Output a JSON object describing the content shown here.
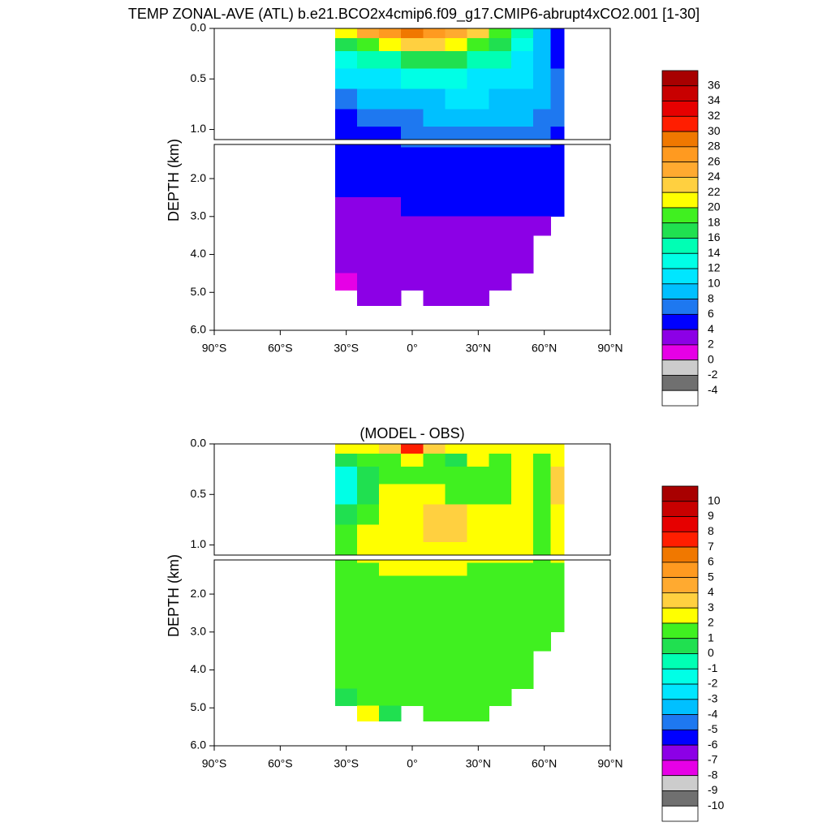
{
  "chart_data": [
    {
      "type": "contour",
      "title": "TEMP ZONAL-AVE (ATL) b.e21.BCO2x4cmip6.f09_g17.CMIP6-abrupt4xCO2.001 [1-30]",
      "y_label": "DEPTH (km)",
      "xlim": [
        -90,
        90
      ],
      "xticks": [
        {
          "value": -90,
          "label": "90°S"
        },
        {
          "value": -60,
          "label": "60°S"
        },
        {
          "value": -30,
          "label": "30°S"
        },
        {
          "value": 0,
          "label": "0°"
        },
        {
          "value": 30,
          "label": "30°N"
        },
        {
          "value": 60,
          "label": "60°N"
        },
        {
          "value": 90,
          "label": "90°N"
        }
      ],
      "axes": [
        {
          "ylim": [
            0,
            1.1
          ],
          "yticks": [
            {
              "value": 0,
              "label": "0.0"
            },
            0.5,
            {
              "value": 1,
              "label": "1.0"
            }
          ]
        },
        {
          "ylim": [
            1.1,
            6
          ],
          "yticks": [
            {
              "value": 2,
              "label": "2.0"
            },
            {
              "value": 3,
              "label": "3.0"
            },
            {
              "value": 4,
              "label": "4.0"
            },
            {
              "value": 5,
              "label": "5.0"
            },
            {
              "value": 6,
              "label": "6.0"
            }
          ]
        }
      ],
      "x": [
        -30,
        -20,
        -10,
        0,
        10,
        20,
        30,
        40,
        50,
        60,
        66
      ],
      "y": [
        0.05,
        0.15,
        0.3,
        0.5,
        0.7,
        0.9,
        1.05,
        1.3,
        1.75,
        2.25,
        2.75,
        3.25,
        3.75,
        4.25,
        4.75,
        5.15
      ],
      "z": [
        [
          22,
          25,
          27,
          29,
          27,
          25,
          23,
          20,
          15,
          10,
          5
        ],
        [
          18,
          20,
          22,
          24,
          23,
          22,
          20,
          17,
          13,
          10,
          6
        ],
        [
          14,
          15,
          16,
          17,
          17,
          17,
          16,
          15,
          12,
          9,
          6
        ],
        [
          12,
          12,
          12,
          13,
          13,
          13,
          12,
          12,
          11,
          9,
          7
        ],
        [
          8,
          9,
          9,
          10,
          10,
          11,
          11,
          10,
          10,
          9,
          7
        ],
        [
          6,
          7,
          8,
          8,
          9,
          9,
          10,
          10,
          9,
          8,
          7
        ],
        [
          5,
          5,
          6,
          7,
          7,
          8,
          8,
          8,
          8,
          7,
          6
        ],
        [
          5,
          5,
          6,
          6,
          6,
          6,
          6,
          6,
          6,
          6,
          5
        ],
        [
          4.5,
          5,
          5,
          5,
          5,
          5,
          5,
          5,
          5,
          5,
          5
        ],
        [
          4.2,
          4.5,
          4.5,
          4.5,
          4.5,
          4.5,
          4.5,
          4.5,
          4.5,
          4.5,
          4.5
        ],
        [
          3.5,
          3.8,
          3.9,
          4.2,
          4.1,
          4.1,
          4.2,
          4.2,
          4.2,
          4.2,
          4.2
        ],
        [
          3,
          3,
          3,
          3.2,
          3.5,
          3.2,
          3.2,
          3.2,
          3.5,
          3.8,
          null
        ],
        [
          3,
          3,
          3,
          3,
          3,
          3,
          3,
          3,
          3,
          null,
          null
        ],
        [
          3,
          3,
          3,
          3,
          3,
          3,
          3,
          3,
          3,
          null,
          null
        ],
        [
          1.8,
          3,
          3,
          3,
          3,
          3,
          3,
          3,
          null,
          null,
          null
        ],
        [
          null,
          3,
          3,
          null,
          3,
          3,
          3,
          null,
          null,
          null,
          null
        ]
      ],
      "colorbar_levels": [
        36,
        34,
        32,
        30,
        28,
        26,
        24,
        22,
        20,
        18,
        16,
        14,
        12,
        10,
        8,
        6,
        4,
        2,
        0,
        -2,
        -4
      ],
      "colors": [
        "#a80000",
        "#c80000",
        "#e60000",
        "#ff1e00",
        "#f07800",
        "#ff9a20",
        "#ffaa30",
        "#ffd040",
        "#ffff00",
        "#40f020",
        "#20e050",
        "#00ffb4",
        "#00ffe6",
        "#00e6ff",
        "#00c0ff",
        "#1e78f0",
        "#0000ff",
        "#8c00e6",
        "#e600e6",
        "#cccccc",
        "#707070",
        "#ffffff"
      ]
    },
    {
      "type": "contour",
      "title": "(MODEL - OBS)",
      "y_label": "DEPTH (km)",
      "xlim": [
        -90,
        90
      ],
      "xticks": [
        {
          "value": -90,
          "label": "90°S"
        },
        {
          "value": -60,
          "label": "60°S"
        },
        {
          "value": -30,
          "label": "30°S"
        },
        {
          "value": 0,
          "label": "0°"
        },
        {
          "value": 30,
          "label": "30°N"
        },
        {
          "value": 60,
          "label": "60°N"
        },
        {
          "value": 90,
          "label": "90°N"
        }
      ],
      "axes": [
        {
          "ylim": [
            0,
            1.1
          ],
          "yticks": [
            {
              "value": 0,
              "label": "0.0"
            },
            0.5,
            {
              "value": 1,
              "label": "1.0"
            }
          ]
        },
        {
          "ylim": [
            1.1,
            6
          ],
          "yticks": [
            {
              "value": 2,
              "label": "2.0"
            },
            {
              "value": 3,
              "label": "3.0"
            },
            {
              "value": 4,
              "label": "4.0"
            },
            {
              "value": 5,
              "label": "5.0"
            },
            {
              "value": 6,
              "label": "6.0"
            }
          ]
        }
      ],
      "x": [
        -30,
        -20,
        -10,
        0,
        10,
        20,
        30,
        40,
        50,
        60,
        66
      ],
      "y": [
        0.05,
        0.15,
        0.3,
        0.5,
        0.7,
        0.9,
        1.05,
        1.3,
        1.75,
        2.25,
        2.75,
        3.25,
        3.75,
        4.25,
        4.75,
        5.15
      ],
      "z": [
        [
          3,
          2.5,
          4,
          8,
          4,
          3,
          3,
          3,
          3,
          3,
          3
        ],
        [
          1,
          1.5,
          2,
          2.5,
          1.5,
          1,
          2.5,
          2,
          3,
          1.5,
          3
        ],
        [
          -1,
          0.5,
          1.5,
          1.5,
          1.5,
          1.5,
          2,
          1.5,
          3,
          1.5,
          4
        ],
        [
          -1.5,
          0.5,
          2.5,
          2.5,
          2.5,
          1.5,
          1.5,
          1.5,
          3,
          1.5,
          4
        ],
        [
          0.5,
          1.5,
          2.5,
          2.5,
          3.5,
          3.5,
          2.5,
          2.5,
          3,
          1.5,
          3
        ],
        [
          1.5,
          2.5,
          2.5,
          2.5,
          3.5,
          3.5,
          2.5,
          2.5,
          2.5,
          1.5,
          3
        ],
        [
          1.5,
          2.5,
          2.5,
          2.5,
          2.5,
          2.5,
          2.5,
          2.5,
          2.5,
          2,
          2.5
        ],
        [
          1.5,
          1.5,
          2.5,
          2.5,
          2.5,
          2.5,
          1.5,
          1.5,
          1.5,
          1.5,
          1.5
        ],
        [
          1.5,
          1.5,
          1.5,
          1.5,
          1.5,
          1.5,
          1.5,
          1.5,
          1.5,
          1.5,
          1.5
        ],
        [
          1.5,
          1.5,
          1.5,
          1.5,
          1.5,
          1.5,
          1.5,
          1.5,
          1.5,
          1.5,
          1.5
        ],
        [
          1.5,
          1.5,
          1.5,
          1.5,
          1.5,
          1.5,
          1.5,
          1.5,
          1.5,
          1.5,
          1.5
        ],
        [
          1.5,
          1.5,
          1.5,
          1.5,
          1.5,
          1.5,
          1.5,
          1.5,
          1.5,
          1.5,
          null
        ],
        [
          1.5,
          1.5,
          1.5,
          1.5,
          1.5,
          1.5,
          1.5,
          1.5,
          1.5,
          null,
          null
        ],
        [
          1.5,
          1.5,
          1.5,
          1.5,
          1.5,
          1.5,
          1.5,
          1.5,
          1.5,
          null,
          null
        ],
        [
          0.5,
          1.5,
          1.5,
          1.5,
          1.5,
          1.5,
          1.5,
          1.5,
          null,
          null,
          null
        ],
        [
          null,
          2.5,
          0.5,
          null,
          1.5,
          1.5,
          1.5,
          null,
          null,
          null,
          null
        ]
      ],
      "colorbar_levels": [
        10,
        9,
        8,
        7,
        6,
        5,
        4,
        3,
        2,
        1,
        0,
        -1,
        -2,
        -3,
        -4,
        -5,
        -6,
        -7,
        -8,
        -9,
        -10
      ],
      "colors": [
        "#a80000",
        "#c80000",
        "#e60000",
        "#ff1e00",
        "#f07800",
        "#ff9a20",
        "#ffaa30",
        "#ffd040",
        "#ffff00",
        "#40f020",
        "#20e050",
        "#00ffb4",
        "#00ffe6",
        "#00e6ff",
        "#00c0ff",
        "#1e78f0",
        "#0000ff",
        "#8c00e6",
        "#e600e6",
        "#cccccc",
        "#707070",
        "#ffffff"
      ]
    }
  ]
}
